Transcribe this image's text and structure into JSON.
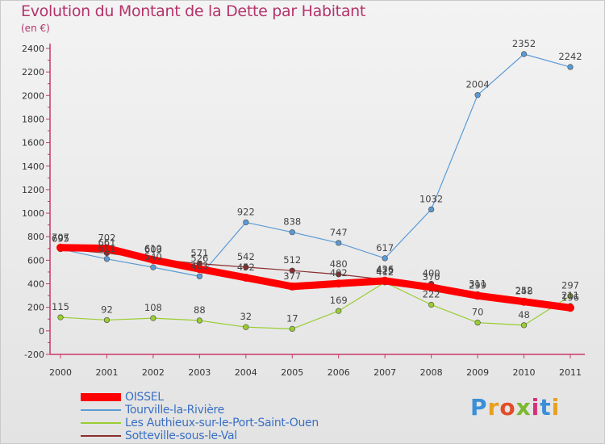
{
  "header": {
    "title": "Evolution du Montant de la Dette par Habitant",
    "subtitle": "(en €)"
  },
  "brand": {
    "text": "Proxiti",
    "letter_colors": [
      "#3a8fd8",
      "#e8a020",
      "#e34c2a",
      "#7cb82f",
      "#d6307a",
      "#3a8fd8",
      "#e8a020"
    ]
  },
  "chart_data": {
    "type": "line",
    "title": "Evolution du Montant de la Dette par Habitant",
    "subtitle": "(en €)",
    "xlabel": "",
    "ylabel": "",
    "x": [
      "2000",
      "2001",
      "2002",
      "2003",
      "2004",
      "2005",
      "2006",
      "2007",
      "2008",
      "2009",
      "2010",
      "2011"
    ],
    "ylim": [
      -200,
      2400
    ],
    "yticks": [
      -200,
      0,
      200,
      400,
      600,
      800,
      1000,
      1200,
      1400,
      1600,
      1800,
      2000,
      2200,
      2400
    ],
    "grid": false,
    "legend_position": "bottom-left",
    "series": [
      {
        "name": "OISSEL",
        "color": "#ff0000",
        "style": "thick",
        "values": [
          707,
          702,
          603,
          526,
          452,
          377,
          402,
          425,
          370,
          299,
          248,
          196
        ],
        "labels": [
          "707",
          "702",
          "603",
          "526",
          "452",
          "377",
          "402",
          "425",
          "370",
          "299",
          "248",
          "196"
        ]
      },
      {
        "name": "Tourville-la-Rivière",
        "color": "#5b9bd5",
        "style": "normal",
        "values": [
          695,
          611,
          540,
          463,
          922,
          838,
          747,
          617,
          1032,
          2004,
          2352,
          2242
        ],
        "labels": [
          "695",
          "611",
          "540",
          "463",
          "922",
          "838",
          "747",
          "617",
          "1032",
          "2004",
          "2352",
          "2242"
        ]
      },
      {
        "name": "Les Authieux-sur-le-Port-Saint-Ouen",
        "color": "#9acd32",
        "style": "normal",
        "values": [
          115,
          92,
          108,
          88,
          32,
          17,
          169,
          412,
          222,
          70,
          48,
          297
        ],
        "labels": [
          "115",
          "92",
          "108",
          "88",
          "32",
          "17",
          "169",
          "412",
          "222",
          "70",
          "48",
          "297"
        ]
      },
      {
        "name": "Sotteville-sous-le-Val",
        "color": "#8b2e2e",
        "style": "normal",
        "values": [
          695,
          661,
          610,
          571,
          542,
          512,
          480,
          436,
          400,
          311,
          252,
          211
        ],
        "labels": [
          "695",
          "661",
          "610",
          "571",
          "542",
          "512",
          "480",
          "436",
          "400",
          "311",
          "252",
          "211"
        ]
      }
    ]
  }
}
